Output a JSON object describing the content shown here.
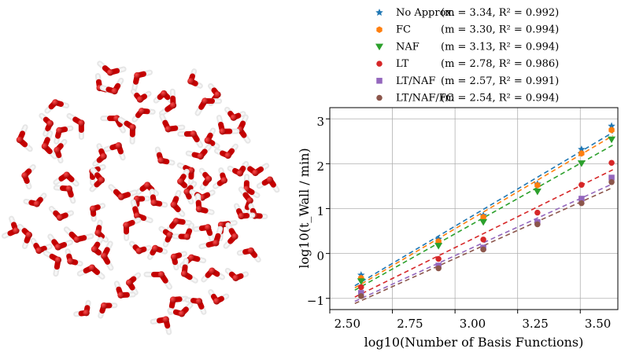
{
  "chart_data": {
    "type": "scatter",
    "xlabel": "log10(Number of Basis Functions)",
    "ylabel": "log10(t_Wall / min)",
    "xlim": [
      2.5,
      3.65
    ],
    "ylim": [
      -1.25,
      3.25
    ],
    "x_ticks": [
      "2.50",
      "2.75",
      "3.00",
      "3.25",
      "3.50"
    ],
    "y_ticks": [
      "−1",
      "0",
      "1",
      "2",
      "3"
    ],
    "grid": true,
    "legend_position": "top-right (above plot)",
    "x": [
      2.625,
      2.934,
      3.113,
      3.329,
      3.505,
      3.625
    ],
    "series": [
      {
        "name": "No Approx.",
        "fit": "(m = 3.34, R² = 0.992)",
        "m": 3.34,
        "r2": 0.992,
        "marker": "star",
        "color": "#1f77b4",
        "values": [
          -0.48,
          0.32,
          0.85,
          1.55,
          2.32,
          2.84
        ]
      },
      {
        "name": "FC",
        "fit": "(m = 3.30, R² = 0.994)",
        "m": 3.3,
        "r2": 0.994,
        "marker": "hexagon",
        "color": "#ff7f0e",
        "values": [
          -0.55,
          0.27,
          0.81,
          1.52,
          2.23,
          2.75
        ]
      },
      {
        "name": "NAF",
        "fit": "(m = 3.13, R² = 0.994)",
        "m": 3.13,
        "r2": 0.994,
        "marker": "triangle-down",
        "color": "#2ca02c",
        "values": [
          -0.62,
          0.17,
          0.7,
          1.38,
          2.01,
          2.54
        ]
      },
      {
        "name": "LT",
        "fit": "(m = 2.78, R² = 0.986)",
        "m": 2.78,
        "r2": 0.986,
        "marker": "circle",
        "color": "#d62728",
        "values": [
          -0.75,
          -0.12,
          0.31,
          0.91,
          1.53,
          2.02
        ]
      },
      {
        "name": "LT/NAF",
        "fit": "(m = 2.57, R² = 0.991)",
        "m": 2.57,
        "r2": 0.991,
        "marker": "square",
        "color": "#9467bd",
        "values": [
          -0.88,
          -0.27,
          0.13,
          0.7,
          1.22,
          1.69
        ]
      },
      {
        "name": "LT/NAF/FC",
        "fit": "(m = 2.54, R² = 0.994)",
        "m": 2.54,
        "r2": 0.994,
        "marker": "circle",
        "color": "#8c564b",
        "values": [
          -0.95,
          -0.33,
          0.09,
          0.65,
          1.12,
          1.59
        ]
      }
    ]
  }
}
